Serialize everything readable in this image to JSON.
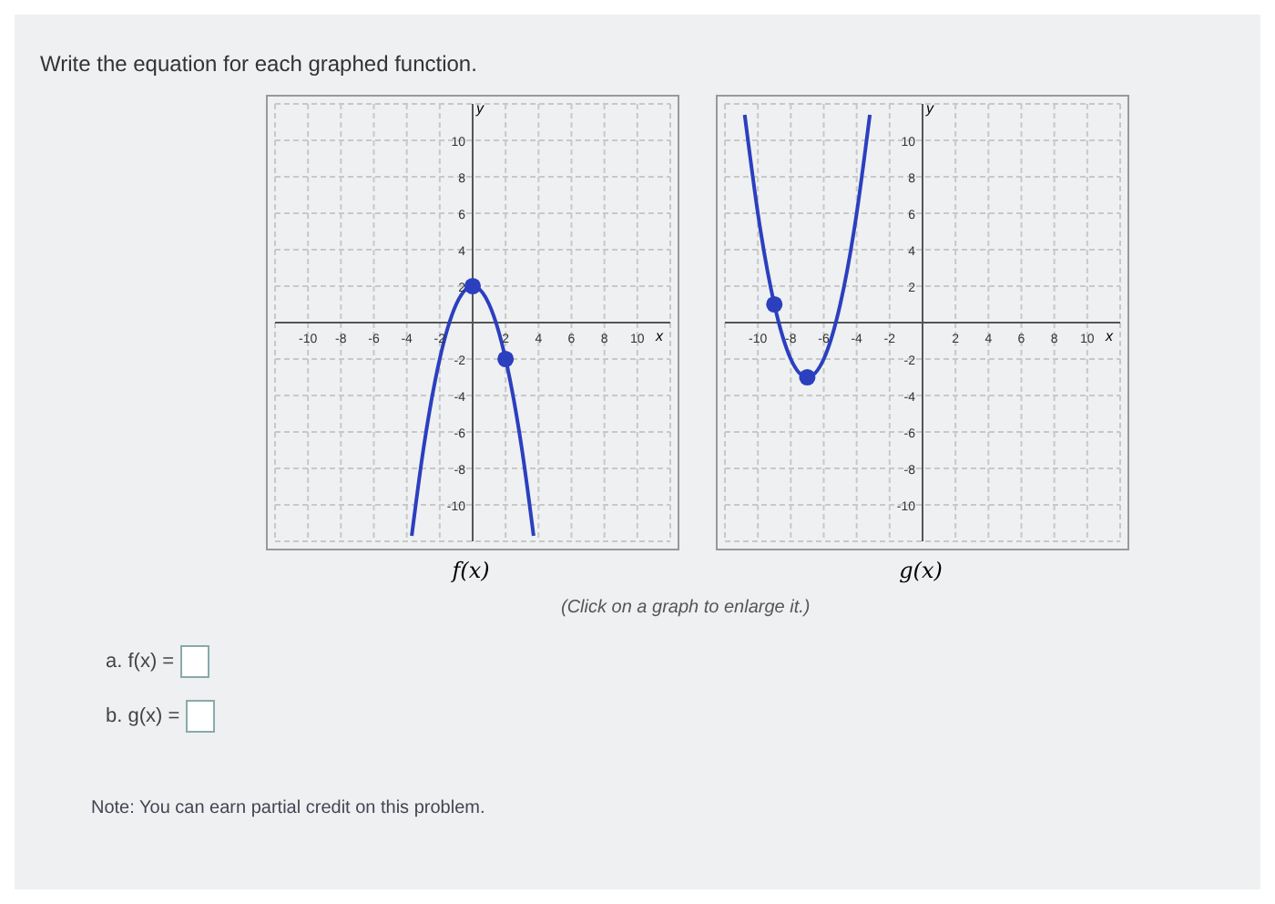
{
  "chart_data": [
    {
      "type": "line",
      "title": "f(x)",
      "xlabel": "x",
      "ylabel": "y",
      "xlim": [
        -12,
        12
      ],
      "ylim": [
        -12,
        12
      ],
      "xticks": [
        -10,
        -8,
        -6,
        -4,
        -2,
        2,
        4,
        6,
        8,
        10
      ],
      "yticks": [
        -10,
        -8,
        -6,
        -4,
        -2,
        2,
        4,
        6,
        8,
        10
      ],
      "grid": true,
      "annotations": [
        "Write the equation for each graphed function.",
        "(Click on a graph to enlarge it.)",
        "a. f(x) =",
        "b. g(x) =",
        "Note: You can earn partial credit on this problem."
      ],
      "series": [
        {
          "color": "#2b3fbf",
          "marker": "none",
          "x": [
            -3.7,
            -3,
            -2,
            -1,
            0,
            1,
            2,
            3,
            3.7
          ],
          "values": [
            -11.7,
            -7,
            -2,
            1,
            2,
            1,
            -2,
            -7,
            -11.7
          ]
        },
        {
          "type": "scatter",
          "color": "#2b3fbf",
          "marker": "circle",
          "x": [
            0,
            2
          ],
          "values": [
            2,
            -2
          ]
        }
      ]
    },
    {
      "type": "line",
      "title": "g(x)",
      "xlabel": "x",
      "ylabel": "y",
      "xlim": [
        -12,
        12
      ],
      "ylim": [
        -12,
        12
      ],
      "xticks": [
        -10,
        -8,
        -6,
        -4,
        -2,
        2,
        4,
        6,
        8,
        10
      ],
      "yticks": [
        -10,
        -8,
        -6,
        -4,
        -2,
        2,
        4,
        6,
        8,
        10
      ],
      "grid": true,
      "series": [
        {
          "color": "#2b3fbf",
          "marker": "none",
          "x": [
            -10.8,
            -10.5,
            -10,
            -9,
            -8,
            -7,
            -6,
            -5,
            -4,
            -3.5,
            -3.2
          ],
          "values": [
            11.4,
            9.3,
            6,
            1,
            -2,
            -3,
            -2,
            1,
            6,
            9.3,
            11.4
          ]
        },
        {
          "type": "scatter",
          "color": "#2b3fbf",
          "marker": "circle",
          "x": [
            -9,
            -7
          ],
          "values": [
            1,
            -3
          ]
        }
      ]
    }
  ]
}
